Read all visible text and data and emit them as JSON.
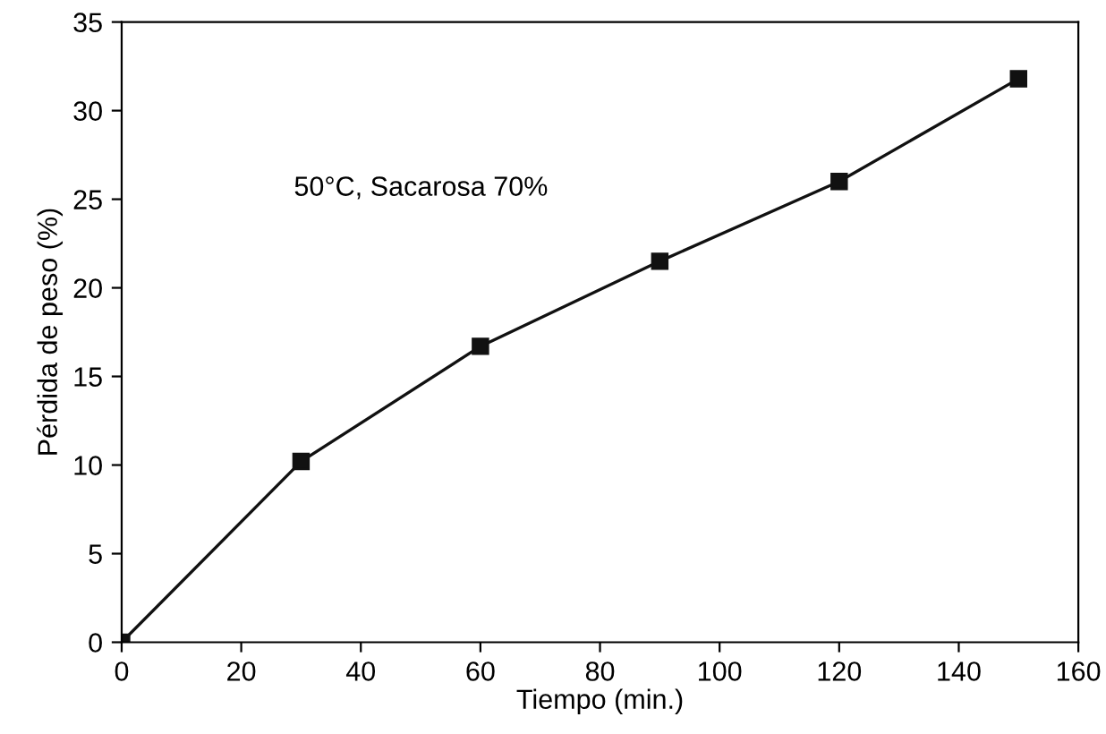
{
  "chart_data": {
    "type": "line",
    "xlabel": "Tiempo (min.)",
    "ylabel": "Pérdida de peso (%)",
    "annotations": [
      "50°C, Sacarosa 70%"
    ],
    "x": [
      0,
      30,
      60,
      90,
      120,
      150
    ],
    "series": [
      {
        "color": "#111111",
        "values": [
          0,
          10.2,
          16.7,
          21.5,
          26.0,
          31.8
        ]
      }
    ],
    "marker": "square",
    "line_style": "solid",
    "grid": false,
    "legend": false,
    "xlim": [
      0,
      160
    ],
    "xticks": [
      0,
      20,
      40,
      60,
      80,
      100,
      120,
      140,
      160
    ],
    "ylim": [
      0,
      35
    ],
    "yticks": [
      0,
      5,
      10,
      15,
      20,
      25,
      30,
      35
    ]
  }
}
